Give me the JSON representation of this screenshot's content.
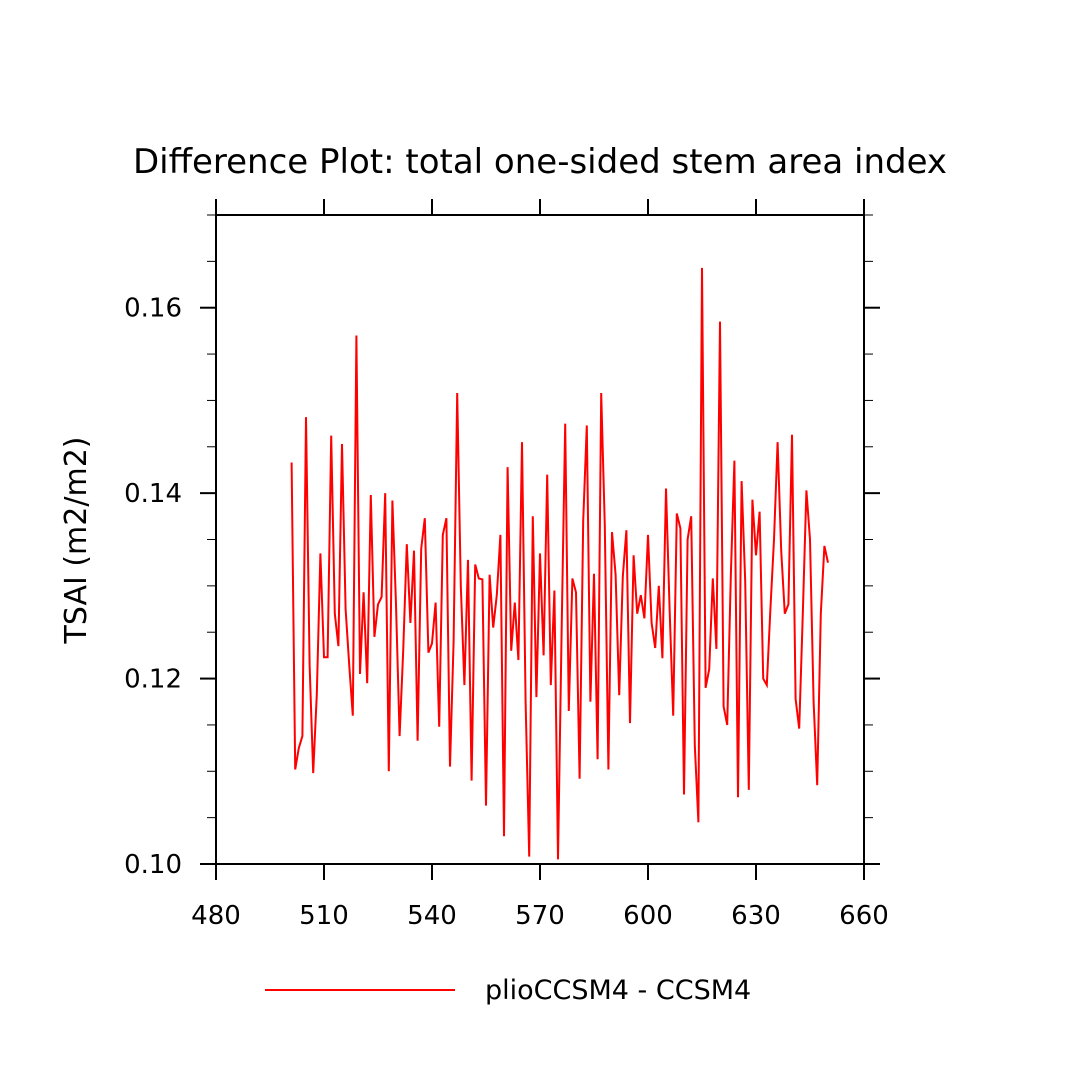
{
  "chart_data": {
    "type": "line",
    "title": "Difference Plot: total one-sided stem area index",
    "xlabel": "",
    "ylabel": "TSAI  (m2/m2)",
    "xlim": [
      480,
      660
    ],
    "ylim": [
      0.1,
      0.17
    ],
    "x_ticks": [
      480,
      510,
      540,
      570,
      600,
      630,
      660
    ],
    "x_tick_labels": [
      "480",
      "510",
      "540",
      "570",
      "600",
      "630",
      "660"
    ],
    "y_ticks": [
      0.1,
      0.12,
      0.14,
      0.16
    ],
    "y_tick_labels": [
      "0.10",
      "0.12",
      "0.14",
      "0.16"
    ],
    "grid": false,
    "legend_position": "bottom-center",
    "series": [
      {
        "name": "plioCCSM4 - CCSM4",
        "color": "#ff0000",
        "x_start": 501,
        "x_step": 1,
        "values": [
          0.1433,
          0.1102,
          0.1125,
          0.1138,
          0.1482,
          0.1215,
          0.1098,
          0.1183,
          0.1335,
          0.1223,
          0.1223,
          0.1462,
          0.127,
          0.1235,
          0.1453,
          0.1275,
          0.1215,
          0.116,
          0.157,
          0.1205,
          0.1293,
          0.1195,
          0.1398,
          0.1245,
          0.128,
          0.1288,
          0.14,
          0.11,
          0.1392,
          0.128,
          0.1138,
          0.123,
          0.1345,
          0.126,
          0.1338,
          0.1133,
          0.134,
          0.1373,
          0.1228,
          0.1238,
          0.1282,
          0.1148,
          0.1355,
          0.1373,
          0.1105,
          0.124,
          0.1508,
          0.13,
          0.1193,
          0.1328,
          0.109,
          0.1323,
          0.1308,
          0.1307,
          0.1063,
          0.1312,
          0.1255,
          0.129,
          0.1355,
          0.103,
          0.1428,
          0.123,
          0.1282,
          0.122,
          0.1455,
          0.1175,
          0.1008,
          0.1375,
          0.118,
          0.1335,
          0.1225,
          0.142,
          0.1193,
          0.1295,
          0.1005,
          0.125,
          0.1475,
          0.1165,
          0.1308,
          0.1293,
          0.1092,
          0.137,
          0.1473,
          0.1175,
          0.1313,
          0.1113,
          0.1508,
          0.1365,
          0.1102,
          0.1358,
          0.1312,
          0.1182,
          0.131,
          0.136,
          0.1152,
          0.1333,
          0.127,
          0.129,
          0.1265,
          0.1355,
          0.126,
          0.1233,
          0.13,
          0.1222,
          0.1405,
          0.1275,
          0.116,
          0.1378,
          0.1362,
          0.1075,
          0.135,
          0.1375,
          0.1128,
          0.1045,
          0.1643,
          0.119,
          0.121,
          0.1308,
          0.1232,
          0.1585,
          0.117,
          0.115,
          0.131,
          0.1435,
          0.1072,
          0.1413,
          0.1305,
          0.108,
          0.1393,
          0.1333,
          0.138,
          0.12,
          0.1193,
          0.1275,
          0.135,
          0.1455,
          0.1338,
          0.127,
          0.128,
          0.1463,
          0.1178,
          0.1146,
          0.127,
          0.1403,
          0.135,
          0.1175,
          0.1085,
          0.127,
          0.1343,
          0.1325
        ]
      }
    ]
  }
}
